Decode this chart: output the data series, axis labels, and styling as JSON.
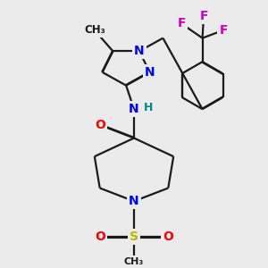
{
  "bg_color": "#ebebeb",
  "bond_color": "#1a1a1a",
  "atom_colors": {
    "N": "#0000ff",
    "O": "#ff0000",
    "F": "#cc00cc",
    "S": "#b8b800",
    "C": "#1a1a1a",
    "H": "#008888"
  },
  "figsize": [
    3.0,
    3.0
  ],
  "dpi": 100
}
